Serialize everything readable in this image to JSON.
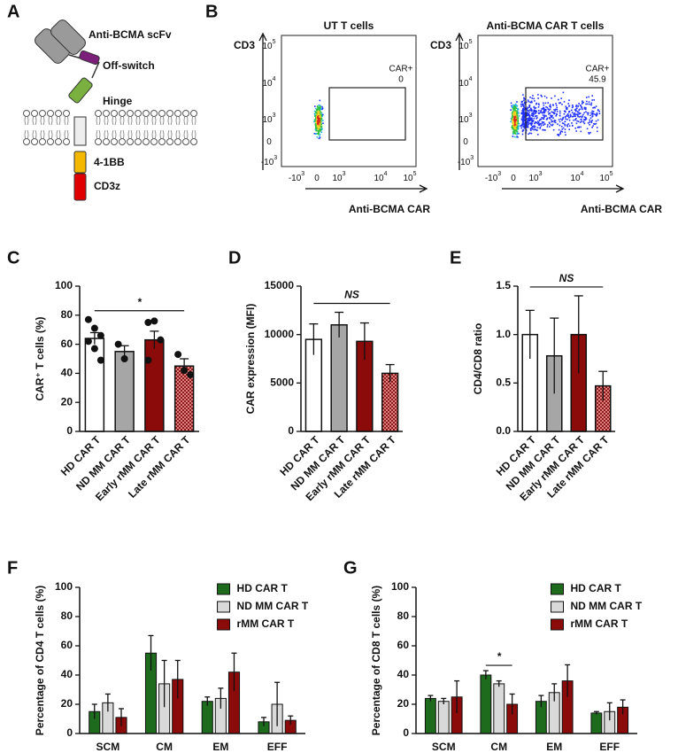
{
  "diagram": {
    "letter": "A",
    "scfv": "Anti-BCMA scFv",
    "off_switch": "Off-switch",
    "hinge": "Hinge",
    "costim": "4-1BB",
    "signal": "CD3z"
  },
  "flow": {
    "letter": "B",
    "x_label": "Anti-BCMA CAR",
    "y_label": "CD3",
    "gate_label": "CAR+",
    "yticks": [
      {
        "base": "10",
        "exp": "5"
      },
      {
        "base": "10",
        "exp": "4"
      },
      {
        "base": "10",
        "exp": "3"
      },
      {
        "base": "0"
      },
      {
        "base": "-10",
        "exp": "3"
      }
    ],
    "xticks": [
      {
        "base": "-10",
        "exp": "3"
      },
      {
        "base": "0"
      },
      {
        "base": "10",
        "exp": "3"
      },
      {
        "base": "10",
        "exp": "4"
      },
      {
        "base": "10",
        "exp": "5"
      }
    ],
    "plots": [
      {
        "title": "UT T cells",
        "gate_value": 0
      },
      {
        "title": "Anti-BCMA CAR T cells",
        "gate_value": 45.9
      }
    ]
  },
  "chart_data": [
    {
      "type": "bar",
      "panel": "C",
      "ylabel": "CAR⁺ T cells (%)",
      "categories": [
        "HD CAR T",
        "ND MM CAR T",
        "Early rMM CAR T",
        "Late rMM CAR T"
      ],
      "values": [
        64,
        55,
        63,
        45
      ],
      "errors": [
        4,
        4,
        6,
        5
      ],
      "points": [
        [
          77,
          71,
          66,
          62,
          57,
          49
        ],
        [
          60,
          50
        ],
        [
          75,
          76,
          63,
          49
        ],
        [
          53,
          42,
          39
        ]
      ],
      "colors": [
        "#ffffff",
        "#a6a6a6",
        "#8b0a0a",
        "#c0504d"
      ],
      "hatched": [
        false,
        false,
        false,
        true
      ],
      "ylim": [
        0,
        100
      ],
      "yticks": [
        0,
        20,
        40,
        60,
        80,
        100
      ],
      "significance": {
        "label": "*",
        "from": 0,
        "to": 3
      }
    },
    {
      "type": "bar",
      "panel": "D",
      "ylabel": "CAR expression (MFI)",
      "categories": [
        "HD CAR T",
        "ND MM CAR T",
        "Early rMM CAR T",
        "Late rMM CAR T"
      ],
      "values": [
        9500,
        11000,
        9300,
        6000
      ],
      "errors": [
        1600,
        1300,
        1900,
        900
      ],
      "colors": [
        "#ffffff",
        "#a6a6a6",
        "#8b0a0a",
        "#c0504d"
      ],
      "hatched": [
        false,
        false,
        false,
        true
      ],
      "ylim": [
        0,
        15000
      ],
      "yticks": [
        0,
        5000,
        10000,
        15000
      ],
      "significance": {
        "label": "NS",
        "from": 0,
        "to": 3
      }
    },
    {
      "type": "bar",
      "panel": "E",
      "ylabel": "CD4/CD8 ratio",
      "categories": [
        "HD CAR T",
        "ND MM CAR T",
        "Early rMM CAR T",
        "Late rMM CAR T"
      ],
      "values": [
        1.0,
        0.78,
        1.0,
        0.47
      ],
      "errors": [
        0.25,
        0.39,
        0.4,
        0.15
      ],
      "colors": [
        "#ffffff",
        "#a6a6a6",
        "#8b0a0a",
        "#c0504d"
      ],
      "hatched": [
        false,
        false,
        false,
        true
      ],
      "ylim": [
        0,
        1.5
      ],
      "yticks": [
        {
          "value": 0,
          "label": "0.0"
        },
        0.5,
        {
          "value": 1,
          "label": "1.0"
        },
        1.5
      ],
      "significance": {
        "label": "NS",
        "from": 0,
        "to": 3
      }
    },
    {
      "type": "grouped_bar",
      "panel": "F",
      "ylabel": "Percentage of CD4 T cells (%)",
      "categories": [
        "SCM",
        "CM",
        "EM",
        "EFF"
      ],
      "series": [
        {
          "name": "HD CAR T",
          "color": "#1e6b1e",
          "values": [
            15,
            55,
            22,
            8
          ],
          "errors": [
            5,
            12,
            3,
            3
          ]
        },
        {
          "name": "ND MM CAR T",
          "color": "#d9d9d9",
          "values": [
            21,
            34,
            24,
            20
          ],
          "errors": [
            6,
            16,
            7,
            15
          ]
        },
        {
          "name": "rMM CAR T",
          "color": "#8b0a0a",
          "values": [
            11,
            37,
            42,
            9
          ],
          "errors": [
            6,
            13,
            13,
            3
          ]
        }
      ],
      "ylim": [
        0,
        100
      ],
      "yticks": [
        0,
        20,
        40,
        60,
        80,
        100
      ]
    },
    {
      "type": "grouped_bar",
      "panel": "G",
      "ylabel": "Percentage of CD8 T cells (%)",
      "categories": [
        "SCM",
        "CM",
        "EM",
        "EFF"
      ],
      "series": [
        {
          "name": "HD CAR T",
          "color": "#1e6b1e",
          "values": [
            24,
            40,
            22,
            14
          ],
          "errors": [
            2,
            3,
            4,
            1
          ]
        },
        {
          "name": "ND MM CAR T",
          "color": "#d9d9d9",
          "values": [
            22,
            34,
            28,
            15
          ],
          "errors": [
            2,
            2,
            6,
            6
          ]
        },
        {
          "name": "rMM CAR T",
          "color": "#8b0a0a",
          "values": [
            25,
            20,
            36,
            18
          ],
          "errors": [
            11,
            7,
            11,
            5
          ]
        }
      ],
      "ylim": [
        0,
        100
      ],
      "yticks": [
        0,
        20,
        40,
        60,
        80,
        100
      ],
      "significance": {
        "label": "*",
        "category": 1,
        "from": 0,
        "to": 2
      }
    }
  ]
}
